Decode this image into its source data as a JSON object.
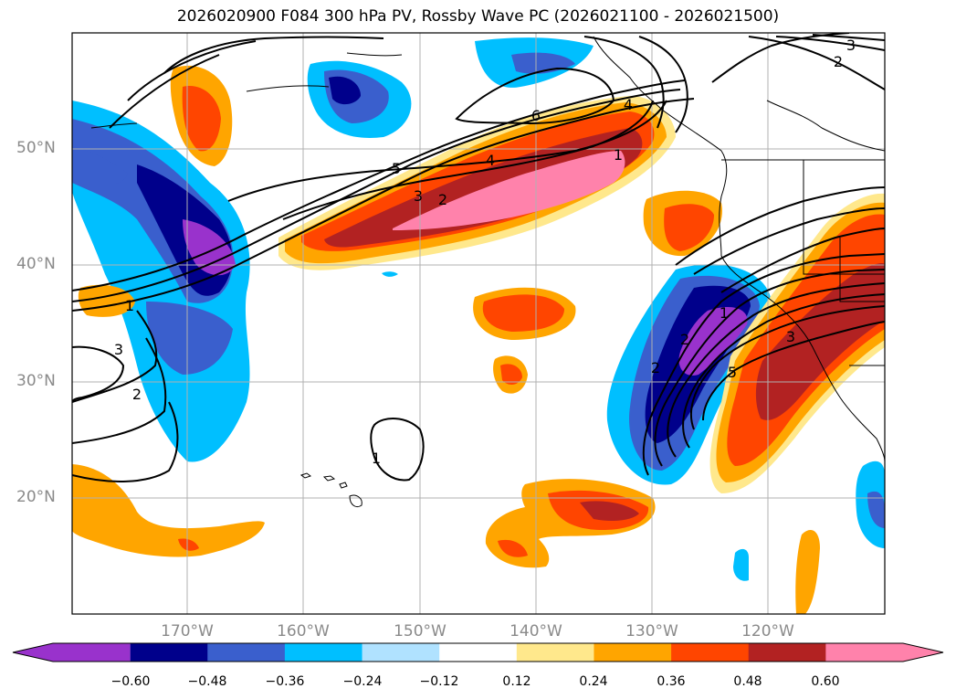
{
  "title": "2026020900 F084 300 hPa PV, Rossby Wave PC (2026021100 - 2026021500)",
  "map": {
    "lat_labels": [
      "50°N",
      "40°N",
      "30°N",
      "20°N"
    ],
    "lon_labels": [
      "170°W",
      "160°W",
      "150°W",
      "140°W",
      "130°W",
      "120°W"
    ],
    "contour_labels": [
      "1",
      "2",
      "3",
      "4",
      "5",
      "6",
      "2",
      "3",
      "4",
      "1",
      "2",
      "3",
      "1",
      "2",
      "5",
      "3",
      "2",
      "1"
    ]
  },
  "colorbar": {
    "tick_labels": [
      "−0.60",
      "−0.48",
      "−0.36",
      "−0.24",
      "−0.12",
      "0.12",
      "0.24",
      "0.36",
      "0.48",
      "0.60"
    ],
    "colors": [
      "#9932cc",
      "#00008b",
      "#3a5fcd",
      "#00bfff",
      "#b0e2ff",
      "#ffffff",
      "#ffe88c",
      "#ffa500",
      "#ff4500",
      "#b22222",
      "#ff82ab"
    ]
  }
}
